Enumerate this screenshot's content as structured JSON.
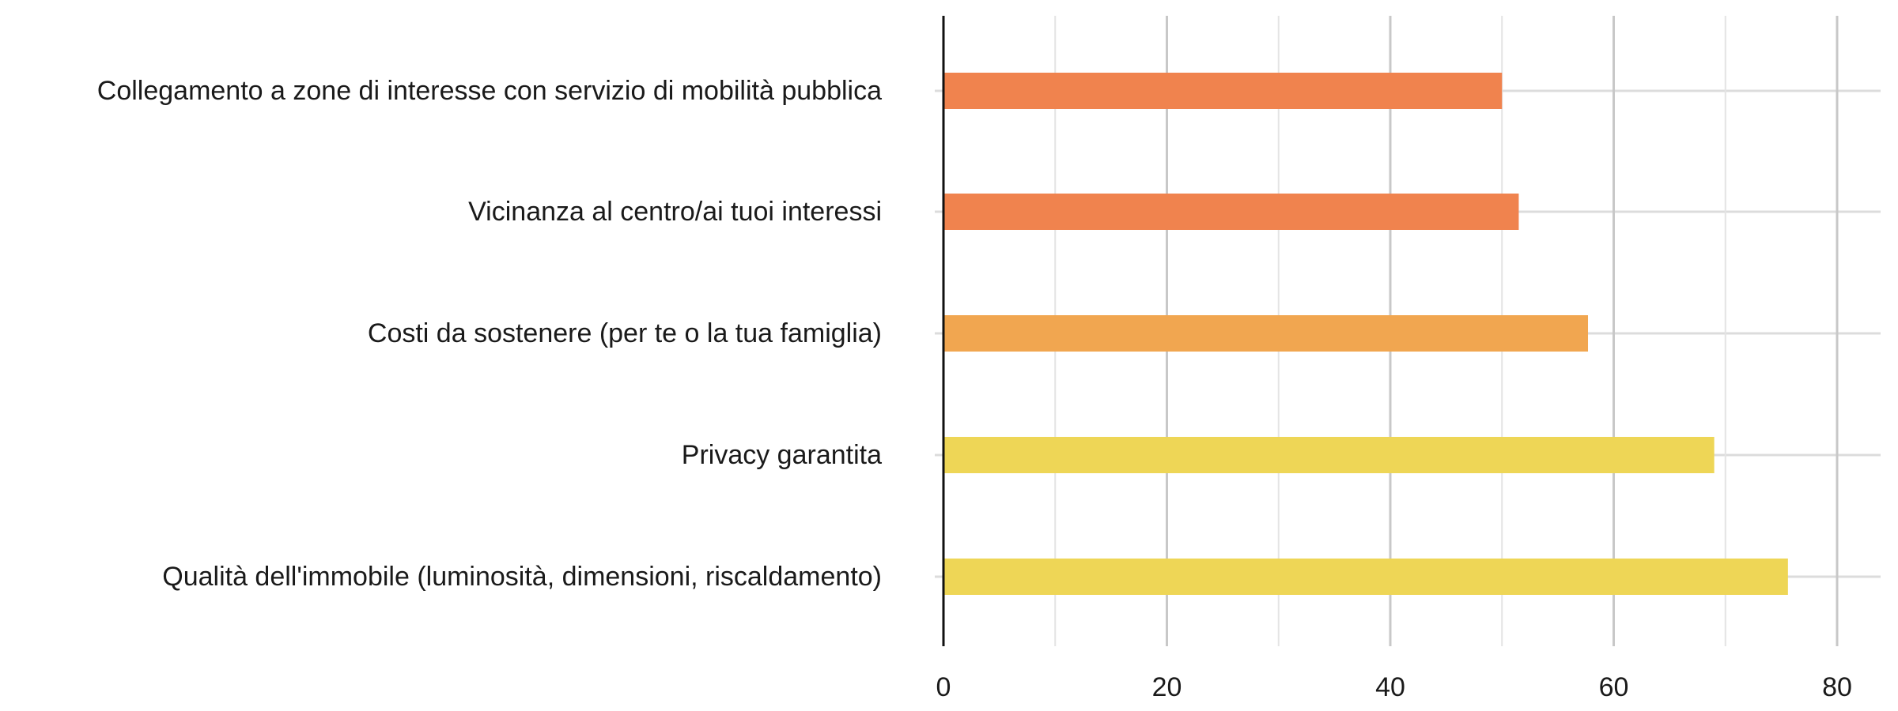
{
  "chart_data": {
    "type": "bar",
    "orientation": "horizontal",
    "title": "",
    "xlabel": "",
    "ylabel": "",
    "categories": [
      "Collegamento a zone di interesse con servizio di mobilità pubblica",
      "Vicinanza al centro/ai tuoi interessi",
      "Costi da sostenere (per te o la tua famiglia)",
      "Privacy garantita",
      "Qualità dell'immobile (luminosità, dimensioni, riscaldamento)"
    ],
    "values": [
      50,
      51.5,
      57.7,
      69,
      75.6
    ],
    "bar_colors": [
      "#f0834e",
      "#f0834e",
      "#f1a650",
      "#eed656",
      "#eed656"
    ],
    "xlim": [
      0,
      84
    ],
    "x_ticks": [
      0,
      20,
      40,
      60,
      80
    ],
    "x_tick_labels": [
      "0",
      "20",
      "40",
      "60",
      "80"
    ],
    "grid": true,
    "legend": "none"
  }
}
